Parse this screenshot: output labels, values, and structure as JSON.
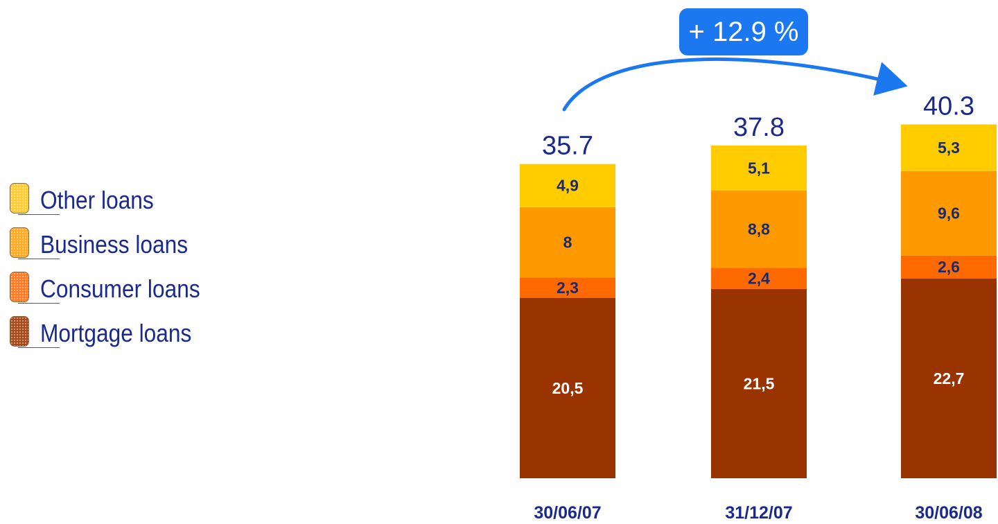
{
  "chart_data": {
    "type": "bar",
    "stacked": true,
    "categories": [
      "30/06/07",
      "31/12/07",
      "30/06/08"
    ],
    "totals": [
      "35.7",
      "37.8",
      "40.3"
    ],
    "series": [
      {
        "name": "Mortgage loans",
        "values": [
          20.5,
          21.5,
          22.7
        ],
        "labels": [
          "20,5",
          "21,5",
          "22,7"
        ],
        "color": "#993300",
        "label_color": "#ffffff"
      },
      {
        "name": "Consumer loans",
        "values": [
          2.3,
          2.4,
          2.6
        ],
        "labels": [
          "2,3",
          "2,4",
          "2,6"
        ],
        "color": "#ff6a00",
        "label_color": "#1a2a6c"
      },
      {
        "name": "Business loans",
        "values": [
          8,
          8.8,
          9.6
        ],
        "labels": [
          "8",
          "8,8",
          "9,6"
        ],
        "color": "#ff9900",
        "label_color": "#1a2a6c"
      },
      {
        "name": "Other loans",
        "values": [
          4.9,
          5.1,
          5.3
        ],
        "labels": [
          "4,9",
          "5,1",
          "5,3"
        ],
        "color": "#ffcc00",
        "label_color": "#1a2a6c"
      }
    ],
    "legend_position": "left",
    "grid": false,
    "annotation": "+ 12.9 %",
    "annotation_color": "#1c78f0"
  },
  "legend": {
    "items": [
      {
        "label": "Other loans",
        "color": "#ffcc33"
      },
      {
        "label": "Business loans",
        "color": "#ffaa22"
      },
      {
        "label": "Consumer loans",
        "color": "#ff7a22"
      },
      {
        "label": "Mortgage loans",
        "color": "#a5481a"
      }
    ]
  }
}
